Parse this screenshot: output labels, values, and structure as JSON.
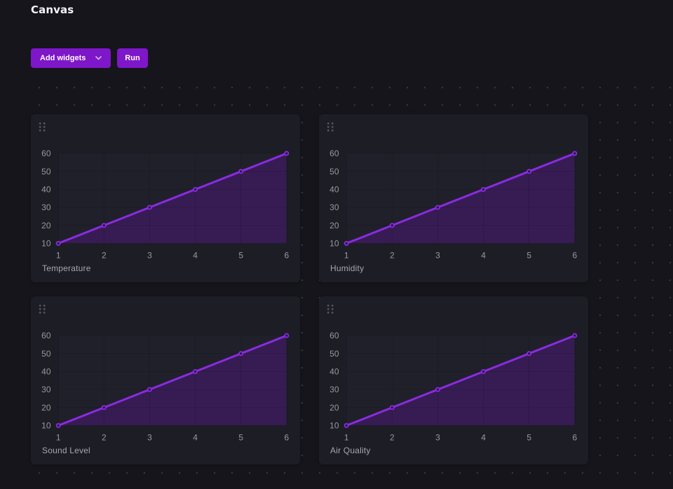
{
  "page": {
    "title": "Canvas"
  },
  "toolbar": {
    "add_widgets_label": "Add widgets",
    "run_label": "Run"
  },
  "colors": {
    "accent": "#7d17c9",
    "line": "#8a2be2",
    "area_fill": "#361c52",
    "area_fill_opacity": 1,
    "marker_fill": "#2e1048",
    "grid_overlay": "rgba(0,0,0,0.13)",
    "plot_bg": "#20202a",
    "tick_text": "#98989f",
    "label_text": "#a7a7af",
    "page_bg": "#15151b",
    "card_bg": "#1d1d25"
  },
  "widgets": [
    {
      "label": "Temperature"
    },
    {
      "label": "Humidity"
    },
    {
      "label": "Sound Level"
    },
    {
      "label": "Air Quality"
    }
  ],
  "chart_data": [
    {
      "type": "area",
      "title": "Temperature",
      "x": [
        1,
        2,
        3,
        4,
        5,
        6
      ],
      "values": [
        10,
        20,
        30,
        40,
        50,
        60
      ],
      "xticks": [
        1,
        2,
        3,
        4,
        5,
        6
      ],
      "yticks": [
        10,
        20,
        30,
        40,
        50,
        60
      ],
      "xlim": [
        1,
        6
      ],
      "ylim": [
        10,
        60
      ],
      "grid": true,
      "legend_position": "none",
      "xlabel": "",
      "ylabel": ""
    },
    {
      "type": "area",
      "title": "Humidity",
      "x": [
        1,
        2,
        3,
        4,
        5,
        6
      ],
      "values": [
        10,
        20,
        30,
        40,
        50,
        60
      ],
      "xticks": [
        1,
        2,
        3,
        4,
        5,
        6
      ],
      "yticks": [
        10,
        20,
        30,
        40,
        50,
        60
      ],
      "xlim": [
        1,
        6
      ],
      "ylim": [
        10,
        60
      ],
      "grid": true,
      "legend_position": "none",
      "xlabel": "",
      "ylabel": ""
    },
    {
      "type": "area",
      "title": "Sound Level",
      "x": [
        1,
        2,
        3,
        4,
        5,
        6
      ],
      "values": [
        10,
        20,
        30,
        40,
        50,
        60
      ],
      "xticks": [
        1,
        2,
        3,
        4,
        5,
        6
      ],
      "yticks": [
        10,
        20,
        30,
        40,
        50,
        60
      ],
      "xlim": [
        1,
        6
      ],
      "ylim": [
        10,
        60
      ],
      "grid": true,
      "legend_position": "none",
      "xlabel": "",
      "ylabel": ""
    },
    {
      "type": "area",
      "title": "Air Quality",
      "x": [
        1,
        2,
        3,
        4,
        5,
        6
      ],
      "values": [
        10,
        20,
        30,
        40,
        50,
        60
      ],
      "xticks": [
        1,
        2,
        3,
        4,
        5,
        6
      ],
      "yticks": [
        10,
        20,
        30,
        40,
        50,
        60
      ],
      "xlim": [
        1,
        6
      ],
      "ylim": [
        10,
        60
      ],
      "grid": true,
      "legend_position": "none",
      "xlabel": "",
      "ylabel": ""
    }
  ]
}
